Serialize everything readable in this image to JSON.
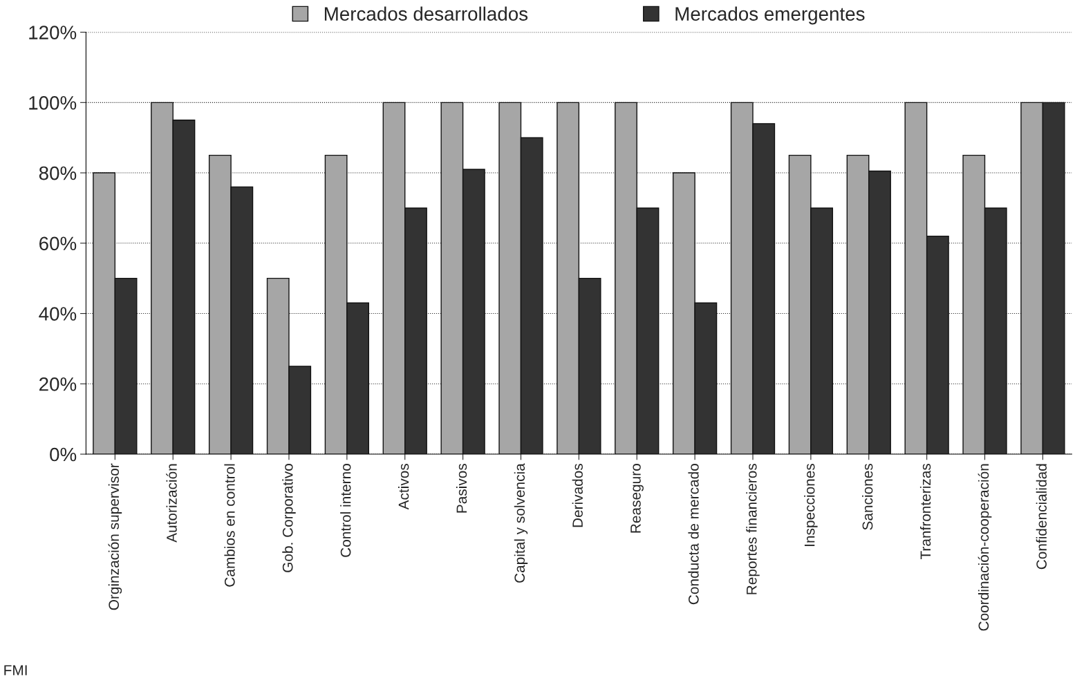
{
  "chart_data": {
    "type": "bar",
    "categories": [
      "Orginzación supervisor",
      "Autorización",
      "Cambios en control",
      "Gob. Corporativo",
      "Control interno",
      "Activos",
      "Pasivos",
      "Capital y solvencia",
      "Derivados",
      "Reaseguro",
      "Conducta de mercado",
      "Reportes financieros",
      "Inspecciones",
      "Sanciones",
      "Tranfronterizas",
      "Coordinación-cooperación",
      "Confidencialidad"
    ],
    "series": [
      {
        "name": "Mercados desarrollados",
        "color": "#a6a6a6",
        "values": [
          80,
          100,
          85,
          50,
          85,
          100,
          100,
          100,
          100,
          100,
          80,
          100,
          85,
          85,
          100,
          85,
          100
        ]
      },
      {
        "name": "Mercados emergentes",
        "color": "#333333",
        "values": [
          50,
          95,
          76,
          25,
          43,
          70,
          81,
          90,
          50,
          70,
          43,
          94,
          70,
          80.5,
          62,
          70,
          100
        ]
      }
    ],
    "ylim": [
      0,
      120
    ],
    "yticks": [
      {
        "value": 0,
        "label": "0%"
      },
      {
        "value": 20,
        "label": "20%"
      },
      {
        "value": 40,
        "label": "40%"
      },
      {
        "value": 60,
        "label": "60%"
      },
      {
        "value": 80,
        "label": "80%"
      },
      {
        "value": 100,
        "label": "100%"
      },
      {
        "value": 120,
        "label": "120%"
      }
    ],
    "grid": "y",
    "legend": "top",
    "annotations": [
      "FMI"
    ]
  }
}
